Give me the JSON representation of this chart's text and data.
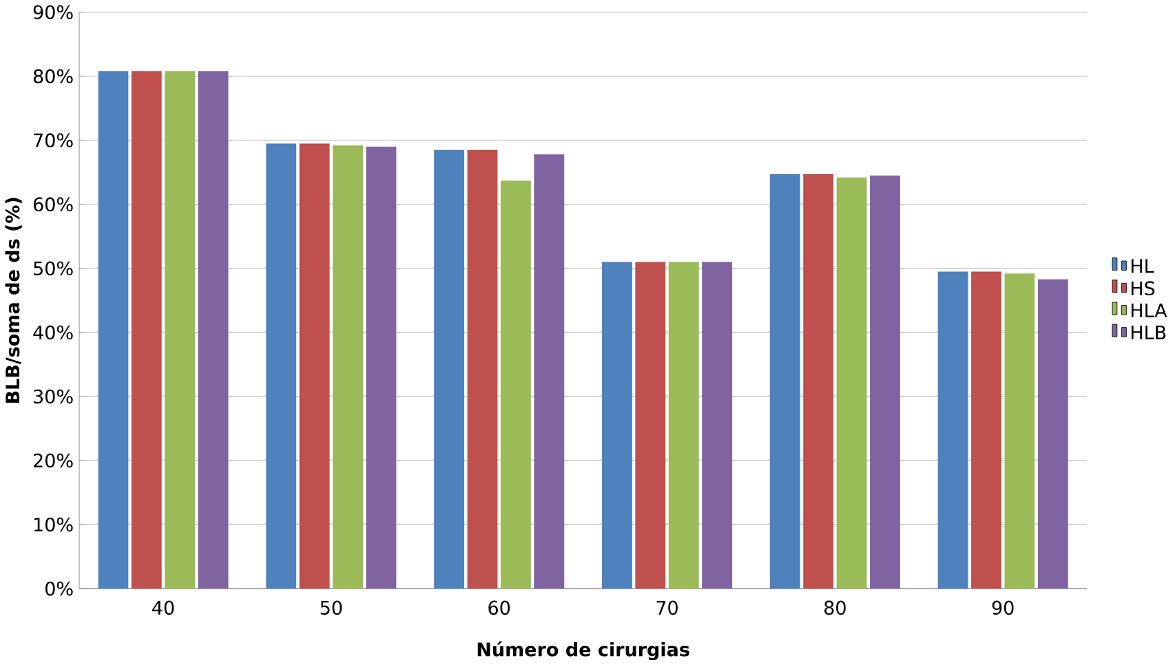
{
  "chart_data": {
    "type": "bar",
    "xlabel": "Número de cirurgias",
    "ylabel": "BLB/soma de ds (%)",
    "categories": [
      "40",
      "50",
      "60",
      "70",
      "80",
      "90"
    ],
    "series": [
      {
        "name": "HL",
        "color": "#4f81bd",
        "values": [
          80.8,
          69.5,
          68.5,
          51,
          64.7,
          49.5
        ]
      },
      {
        "name": "HS",
        "color": "#c0504d",
        "values": [
          80.8,
          69.5,
          68.5,
          51,
          64.7,
          49.5
        ]
      },
      {
        "name": "HLA",
        "color": "#9bbb59",
        "values": [
          80.8,
          69.2,
          63.7,
          51,
          64.2,
          49.2
        ]
      },
      {
        "name": "HLB",
        "color": "#8064a2",
        "values": [
          80.8,
          69,
          67.8,
          51,
          64.5,
          48.3
        ]
      }
    ],
    "ylim": [
      0,
      90
    ],
    "yticks": [
      {
        "value": 0,
        "label": "0%"
      },
      {
        "value": 10,
        "label": "10%"
      },
      {
        "value": 20,
        "label": "20%"
      },
      {
        "value": 30,
        "label": "30%"
      },
      {
        "value": 40,
        "label": "40%"
      },
      {
        "value": 50,
        "label": "50%"
      },
      {
        "value": 60,
        "label": "60%"
      },
      {
        "value": 70,
        "label": "70%"
      },
      {
        "value": 80,
        "label": "80%"
      },
      {
        "value": 90,
        "label": "90%"
      }
    ],
    "grid": "y",
    "legend": "right"
  }
}
